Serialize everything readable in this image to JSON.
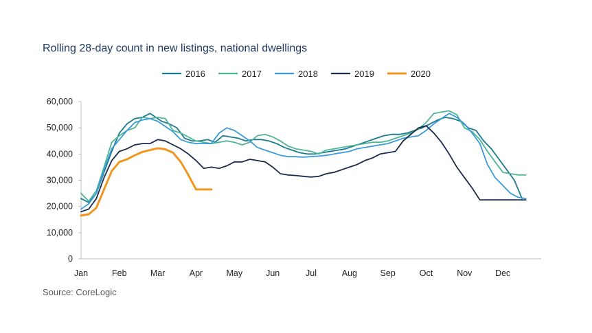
{
  "title": "Rolling 28-day count in new listings, national dwellings",
  "source": "Source: CoreLogic",
  "chart_data": {
    "type": "line",
    "title": "Rolling 28-day count in new listings, national dwellings",
    "xlabel": "",
    "ylabel": "",
    "ylim": [
      0,
      60000
    ],
    "yticks": [
      0,
      10000,
      20000,
      30000,
      40000,
      50000,
      60000
    ],
    "ytick_labels": [
      "0",
      "10,000",
      "20,000",
      "30,000",
      "40,000",
      "50,000",
      "60,000"
    ],
    "xlim": [
      0,
      12
    ],
    "xticks": [
      0,
      1,
      2,
      3,
      4,
      5,
      6,
      7,
      8,
      9,
      10,
      11
    ],
    "xtick_labels": [
      "Jan",
      "Feb",
      "Mar",
      "Apr",
      "May",
      "Jun",
      "Jul",
      "Aug",
      "Sep",
      "Oct",
      "Nov",
      "Dec"
    ],
    "x_unit": "months since 1 January",
    "grid": false,
    "legend_position": "top-center",
    "series": [
      {
        "name": "2016",
        "color": "#1a7a8c",
        "x": [
          0,
          0.2,
          0.4,
          0.6,
          0.8,
          1.0,
          1.2,
          1.4,
          1.6,
          1.8,
          1.95,
          2.1,
          2.3,
          2.5,
          2.7,
          2.9,
          3.1,
          3.3,
          3.5,
          3.7,
          3.9,
          4.1,
          4.3,
          4.5,
          4.7,
          4.9,
          5.1,
          5.3,
          5.5,
          5.7,
          5.9,
          6.1,
          6.3,
          6.5,
          6.7,
          6.9,
          7.1,
          7.3,
          7.5,
          7.7,
          7.9,
          8.1,
          8.3,
          8.5,
          8.7,
          8.9,
          9.1,
          9.3,
          9.5,
          9.7,
          9.9,
          10.1,
          10.3,
          10.5,
          10.7,
          10.9,
          11.1,
          11.3,
          11.5
        ],
        "y": [
          23000,
          21500,
          25000,
          33000,
          41000,
          48000,
          51500,
          53500,
          54000,
          55500,
          54000,
          52500,
          51500,
          50000,
          46000,
          45000,
          45000,
          45500,
          44500,
          47000,
          46500,
          46000,
          45000,
          45500,
          45500,
          45000,
          44000,
          42500,
          41500,
          40500,
          40000,
          40000,
          40500,
          41000,
          41500,
          42000,
          43000,
          44000,
          45000,
          46000,
          47000,
          47500,
          47500,
          48000,
          49000,
          50000,
          51500,
          53000,
          54000,
          53500,
          52500,
          50000,
          49000,
          45000,
          42000,
          38000,
          34000,
          30000,
          23000
        ]
      },
      {
        "name": "2017",
        "color": "#4db595",
        "x": [
          0,
          0.2,
          0.4,
          0.6,
          0.8,
          1.0,
          1.2,
          1.4,
          1.6,
          1.8,
          2.0,
          2.2,
          2.4,
          2.6,
          2.8,
          3.0,
          3.2,
          3.4,
          3.6,
          3.8,
          4.0,
          4.2,
          4.4,
          4.6,
          4.8,
          5.0,
          5.2,
          5.4,
          5.6,
          5.8,
          6.0,
          6.2,
          6.4,
          6.6,
          6.8,
          7.0,
          7.2,
          7.4,
          7.6,
          7.8,
          8.0,
          8.2,
          8.4,
          8.6,
          8.8,
          9.0,
          9.2,
          9.4,
          9.6,
          9.8,
          10.0,
          10.2,
          10.4,
          10.6,
          10.8,
          11.0,
          11.2,
          11.4,
          11.6
        ],
        "y": [
          25000,
          22000,
          26000,
          35000,
          44500,
          47000,
          49000,
          50000,
          54000,
          53500,
          54000,
          53500,
          49000,
          48000,
          46500,
          45000,
          44500,
          44000,
          44500,
          45000,
          44500,
          43500,
          44500,
          47000,
          47500,
          46500,
          45000,
          43000,
          42000,
          41500,
          41000,
          40000,
          41500,
          42000,
          42500,
          43000,
          43500,
          44000,
          44500,
          44500,
          45000,
          46000,
          47000,
          48000,
          49500,
          52000,
          55500,
          56000,
          56500,
          55000,
          50000,
          48500,
          45500,
          41000,
          37000,
          33000,
          32500,
          32000,
          32000
        ]
      },
      {
        "name": "2018",
        "color": "#3a9ad9",
        "x": [
          0,
          0.2,
          0.4,
          0.6,
          0.8,
          1.0,
          1.2,
          1.4,
          1.6,
          1.8,
          2.0,
          2.2,
          2.4,
          2.6,
          2.8,
          3.0,
          3.2,
          3.4,
          3.6,
          3.8,
          4.0,
          4.2,
          4.4,
          4.6,
          4.8,
          5.0,
          5.2,
          5.4,
          5.6,
          5.8,
          6.0,
          6.2,
          6.4,
          6.6,
          6.8,
          7.0,
          7.2,
          7.4,
          7.6,
          7.8,
          8.0,
          8.2,
          8.4,
          8.6,
          8.8,
          9.0,
          9.2,
          9.4,
          9.6,
          9.8,
          10.0,
          10.2,
          10.4,
          10.6,
          10.8,
          11.0,
          11.2,
          11.4,
          11.6
        ],
        "y": [
          19000,
          21000,
          25000,
          34000,
          42000,
          45500,
          49000,
          52000,
          53000,
          53500,
          52500,
          50500,
          48500,
          45500,
          44500,
          44000,
          44000,
          44000,
          48000,
          50000,
          49000,
          47000,
          45000,
          42500,
          41500,
          40500,
          39500,
          39000,
          39000,
          38800,
          39000,
          39200,
          39500,
          40000,
          40500,
          41000,
          42000,
          42500,
          43000,
          43500,
          44000,
          45000,
          46000,
          46500,
          47000,
          49000,
          51500,
          53500,
          55500,
          54000,
          51500,
          48000,
          44000,
          36000,
          31000,
          28000,
          25000,
          23500,
          23000
        ]
      },
      {
        "name": "2019",
        "color": "#1b2a4a",
        "x": [
          0,
          0.2,
          0.4,
          0.6,
          0.8,
          1.0,
          1.2,
          1.4,
          1.6,
          1.8,
          2.0,
          2.2,
          2.4,
          2.6,
          2.8,
          3.0,
          3.2,
          3.4,
          3.6,
          3.8,
          4.0,
          4.2,
          4.4,
          4.6,
          4.8,
          5.0,
          5.2,
          5.4,
          5.6,
          5.8,
          6.0,
          6.2,
          6.4,
          6.6,
          6.8,
          7.0,
          7.2,
          7.4,
          7.6,
          7.8,
          8.0,
          8.2,
          8.4,
          8.6,
          8.8,
          9.0,
          9.2,
          9.4,
          9.6,
          9.8,
          10.0,
          10.2,
          10.4,
          10.6,
          10.8,
          11.0,
          11.2,
          11.4,
          11.6
        ],
        "y": [
          18000,
          19000,
          23000,
          31000,
          37500,
          41000,
          42000,
          43500,
          44000,
          44000,
          45500,
          45000,
          43500,
          42000,
          40000,
          37500,
          34500,
          35000,
          34500,
          35500,
          37000,
          37000,
          38000,
          37500,
          37000,
          35000,
          32500,
          32000,
          31800,
          31500,
          31200,
          31500,
          32500,
          33000,
          34000,
          35000,
          36000,
          37500,
          38500,
          40000,
          40500,
          41000,
          45000,
          47500,
          50000,
          50800,
          48000,
          44500,
          40000,
          35000,
          31000,
          27000,
          22500,
          22500,
          22500,
          22500,
          22500,
          22500,
          22500
        ]
      },
      {
        "name": "2020",
        "color": "#f0961e",
        "x": [
          0,
          0.2,
          0.4,
          0.6,
          0.8,
          1.0,
          1.2,
          1.4,
          1.6,
          1.8,
          2.0,
          2.2,
          2.4,
          2.6,
          2.8,
          3.0,
          3.2,
          3.4
        ],
        "y": [
          16500,
          17000,
          19500,
          26500,
          33500,
          37000,
          38000,
          39500,
          40800,
          41500,
          42200,
          41800,
          40500,
          37000,
          32000,
          26500,
          26500,
          26500
        ]
      }
    ]
  }
}
